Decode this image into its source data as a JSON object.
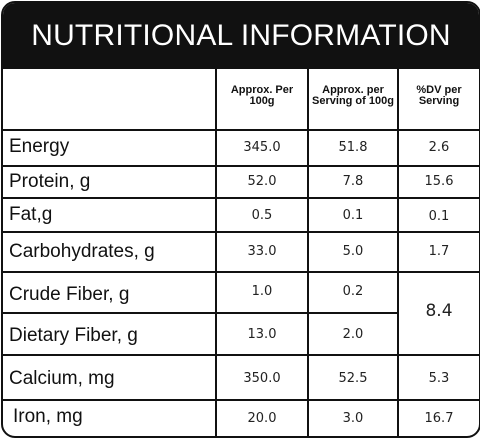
{
  "title": "NUTRITIONAL INFORMATION",
  "columns": [
    "Approx. Per 100g",
    "Approx. per Serving of 100g",
    "%DV per Serving"
  ],
  "rows": [
    {
      "label": "Energy",
      "per100g": "345.0",
      "perServing": "51.8",
      "dv": "2.6"
    },
    {
      "label": "Protein, g",
      "per100g": "52.0",
      "perServing": "7.8",
      "dv": "15.6"
    },
    {
      "label": "Fat,g",
      "per100g": "0.5",
      "perServing": "0.1",
      "dv": "0.1"
    },
    {
      "label": "Carbohydrates, g",
      "per100g": "33.0",
      "perServing": "5.0",
      "dv": "1.7"
    },
    {
      "label": "Crude Fiber, g",
      "per100g": "1.0",
      "perServing": "0.2"
    },
    {
      "label": "Dietary Fiber, g",
      "per100g": "13.0",
      "perServing": "2.0"
    },
    {
      "label": "Calcium, mg",
      "per100g": "350.0",
      "perServing": "52.5",
      "dv": "5.3"
    },
    {
      "label": "Iron, mg",
      "per100g": "20.0",
      "perServing": "3.0",
      "dv": "16.7"
    }
  ],
  "fiber_dv_combined": "8.4"
}
